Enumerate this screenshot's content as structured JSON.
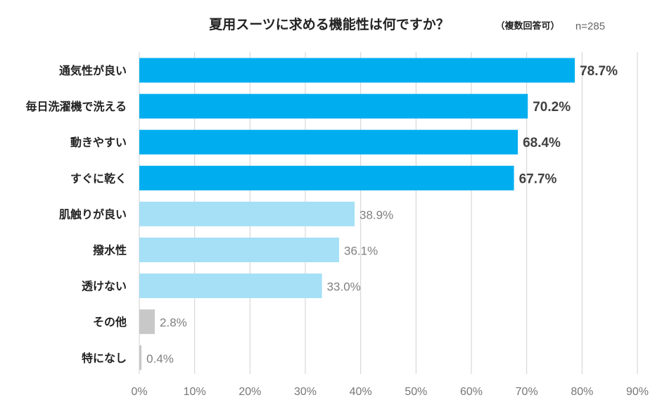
{
  "chart_data": {
    "type": "bar",
    "orientation": "horizontal",
    "title": "夏用スーツに求める機能性は何ですか？",
    "note": "（複数回答可）",
    "sample": "n=285",
    "categories": [
      "通気性が良い",
      "毎日洗濯機で洗える",
      "動きやすい",
      "すぐに乾く",
      "肌触りが良い",
      "撥水性",
      "透けない",
      "その他",
      "特になし"
    ],
    "values": [
      78.7,
      70.2,
      68.4,
      67.7,
      38.9,
      36.1,
      33.0,
      2.8,
      0.4
    ],
    "value_labels": [
      "78.7%",
      "70.2%",
      "68.4%",
      "67.7%",
      "38.9%",
      "36.1%",
      "33.0%",
      "2.8%",
      "0.4%"
    ],
    "xlim": [
      0,
      90
    ],
    "x_ticks": [
      0,
      10,
      20,
      30,
      40,
      50,
      60,
      70,
      80,
      90
    ],
    "x_tick_labels": [
      "0%",
      "10%",
      "20%",
      "30%",
      "40%",
      "50%",
      "60%",
      "70%",
      "80%",
      "90%"
    ],
    "grid": true,
    "legend": "none",
    "colors": {
      "highlight": "#00aeef",
      "normal": "#a5e0f6",
      "other": "#c8c8c8",
      "highlight_label": "#404040",
      "normal_label": "#7f7f7f"
    },
    "color_groups": [
      "highlight",
      "highlight",
      "highlight",
      "highlight",
      "normal",
      "normal",
      "normal",
      "other",
      "other"
    ]
  }
}
